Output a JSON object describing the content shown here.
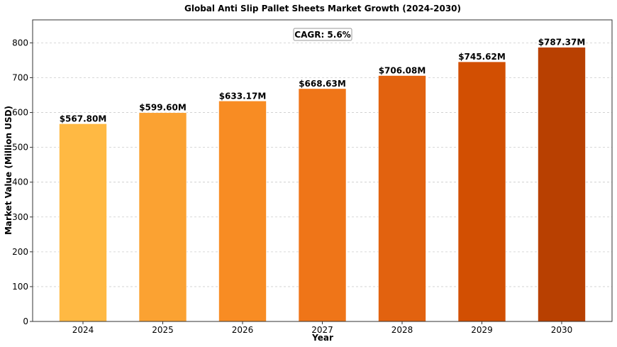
{
  "chart_data": {
    "type": "bar",
    "title": "Global Anti Slip Pallet Sheets Market Growth (2024-2030)",
    "xlabel": "Year",
    "ylabel": "Market Value (Million USD)",
    "categories": [
      "2024",
      "2025",
      "2026",
      "2027",
      "2028",
      "2029",
      "2030"
    ],
    "values": [
      567.8,
      599.6,
      633.17,
      668.63,
      706.08,
      745.62,
      787.37
    ],
    "data_labels": [
      "$567.80M",
      "$599.60M",
      "$633.17M",
      "$668.63M",
      "$706.08M",
      "$745.62M",
      "$787.37M"
    ],
    "colors": [
      "#FFB943",
      "#FBA232",
      "#F88C23",
      "#EF7518",
      "#E2620F",
      "#D24F02",
      "#B84001"
    ],
    "ylim": [
      0,
      866
    ],
    "yticks": [
      0,
      100,
      200,
      300,
      400,
      500,
      600,
      700,
      800
    ],
    "grid": true,
    "annotation": "CAGR: 5.6%"
  }
}
